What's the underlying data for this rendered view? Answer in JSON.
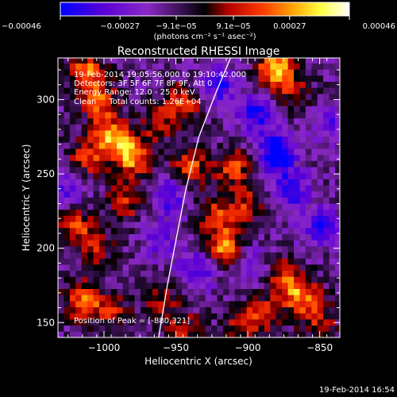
{
  "chart_data": {
    "type": "heatmap",
    "title": "Reconstructed RHESSI Image",
    "xlabel": "Heliocentric X (arcsec)",
    "ylabel": "Heliocentric Y (arcsec)",
    "xlim": [
      -1032,
      -836
    ],
    "ylim": [
      140,
      328
    ],
    "x_ticks": [
      -1000,
      -950,
      -900,
      -850
    ],
    "x_tick_labels": [
      "−1000",
      "−950",
      "−900",
      "−850"
    ],
    "y_ticks": [
      150,
      200,
      250,
      300
    ],
    "y_tick_labels": [
      "150",
      "200",
      "250",
      "300"
    ],
    "colorbar": {
      "range": [
        -0.00046,
        0.00046
      ],
      "ticks": [
        -0.00046,
        -0.00027,
        -9.1e-05,
        9.1e-05,
        0.00027,
        0.00046
      ],
      "tick_labels": [
        "−0.00046",
        "−0.00027",
        "−9.1e−05",
        "9.1e−05",
        "0.00027",
        "0.00046"
      ],
      "unit_label": "(photons cm⁻² s⁻¹ asec⁻²)",
      "colors": [
        "#0000ff",
        "#5a00d6",
        "#8a28c6",
        "#000000",
        "#b40000",
        "#ff3a00",
        "#ffa000",
        "#ffff40",
        "#ffffff"
      ]
    },
    "annotations": [
      "19-Feb-2014 19:05:56.000 to 19:10:42.000",
      "Detectors: 3F 5F 6F 7F 8F 9F, Att 0",
      "Energy Range: 12.0 - 25.0 keV",
      "Clean     Total counts: 1.26E+04"
    ],
    "peak_label": "Position of Peak = [-880,321]",
    "peak": {
      "x": -880,
      "y": 321
    },
    "limb_curve": [
      [
        -962,
        140
      ],
      [
        -956,
        175
      ],
      [
        -950,
        205
      ],
      [
        -943,
        240
      ],
      [
        -934,
        275
      ],
      [
        -922,
        305
      ],
      [
        -912,
        328
      ]
    ],
    "bright_sources": [
      {
        "x": -1012,
        "y": 318,
        "v": 0.00035
      },
      {
        "x": -1003,
        "y": 298,
        "v": 0.0003
      },
      {
        "x": -995,
        "y": 275,
        "v": 0.00038
      },
      {
        "x": -980,
        "y": 262,
        "v": 0.0004
      },
      {
        "x": -1012,
        "y": 260,
        "v": 0.00025
      },
      {
        "x": -985,
        "y": 232,
        "v": 0.00025
      },
      {
        "x": -1020,
        "y": 215,
        "v": 0.00028
      },
      {
        "x": -1005,
        "y": 200,
        "v": 0.00018
      },
      {
        "x": -1015,
        "y": 165,
        "v": 0.00032
      },
      {
        "x": -995,
        "y": 158,
        "v": 0.00022
      },
      {
        "x": -960,
        "y": 165,
        "v": 0.00018
      },
      {
        "x": -940,
        "y": 255,
        "v": 0.0003
      },
      {
        "x": -945,
        "y": 298,
        "v": 0.00026
      },
      {
        "x": -962,
        "y": 285,
        "v": 0.0002
      },
      {
        "x": -922,
        "y": 222,
        "v": 0.00026
      },
      {
        "x": -915,
        "y": 200,
        "v": 0.00042
      },
      {
        "x": -910,
        "y": 255,
        "v": 0.00028
      },
      {
        "x": -900,
        "y": 230,
        "v": 0.00022
      },
      {
        "x": -880,
        "y": 321,
        "v": 0.00046
      },
      {
        "x": -868,
        "y": 305,
        "v": 0.00018
      },
      {
        "x": -875,
        "y": 180,
        "v": 0.00026
      },
      {
        "x": -862,
        "y": 168,
        "v": 0.00034
      },
      {
        "x": -888,
        "y": 155,
        "v": 0.00022
      },
      {
        "x": -945,
        "y": 145,
        "v": 0.0002
      },
      {
        "x": -905,
        "y": 150,
        "v": 0.00018
      },
      {
        "x": -850,
        "y": 150,
        "v": 0.0002
      }
    ],
    "dim_sources": [
      {
        "x": -880,
        "y": 265,
        "v": -0.00042
      },
      {
        "x": -895,
        "y": 290,
        "v": -0.0003
      },
      {
        "x": -870,
        "y": 240,
        "v": -0.0003
      },
      {
        "x": -920,
        "y": 310,
        "v": -0.00026
      },
      {
        "x": -955,
        "y": 235,
        "v": -0.00025
      },
      {
        "x": -935,
        "y": 185,
        "v": -0.00026
      },
      {
        "x": -900,
        "y": 190,
        "v": -0.0002
      },
      {
        "x": -850,
        "y": 215,
        "v": -0.00025
      },
      {
        "x": -1025,
        "y": 240,
        "v": -0.00022
      },
      {
        "x": -960,
        "y": 205,
        "v": -0.00018
      },
      {
        "x": -845,
        "y": 285,
        "v": -0.0002
      }
    ]
  },
  "footer_timestamp": "19-Feb-2014 16:54"
}
